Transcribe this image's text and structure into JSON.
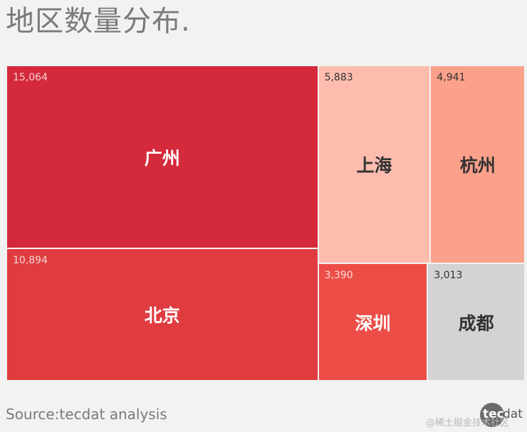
{
  "title": "地区数量分布.",
  "source": "Source:tecdat analysis",
  "logo": {
    "part1": "tec",
    "part2": "dat"
  },
  "watermark": "@稀土掘金技术社区",
  "chart_data": {
    "type": "treemap",
    "title": "地区数量分布.",
    "items": [
      {
        "name": "广州",
        "value": 15064,
        "label": "15,064",
        "color": "#d42a3b",
        "text_color": "#ffffff",
        "value_color": "#f4d0d3"
      },
      {
        "name": "北京",
        "value": 10894,
        "label": "10,894",
        "color": "#e03c40",
        "text_color": "#ffffff",
        "value_color": "#f7d6d6"
      },
      {
        "name": "上海",
        "value": 5883,
        "label": "5,883",
        "color": "#fdbcae",
        "text_color": "#333333",
        "value_color": "#333333"
      },
      {
        "name": "杭州",
        "value": 4941,
        "label": "4,941",
        "color": "#fba08b",
        "text_color": "#333333",
        "value_color": "#333333"
      },
      {
        "name": "深圳",
        "value": 3390,
        "label": "3,390",
        "color": "#ec4d46",
        "text_color": "#ffffff",
        "value_color": "#fbdcd9"
      },
      {
        "name": "成都",
        "value": 3013,
        "label": "3,013",
        "color": "#d3d3d3",
        "text_color": "#333333",
        "value_color": "#333333"
      }
    ]
  }
}
